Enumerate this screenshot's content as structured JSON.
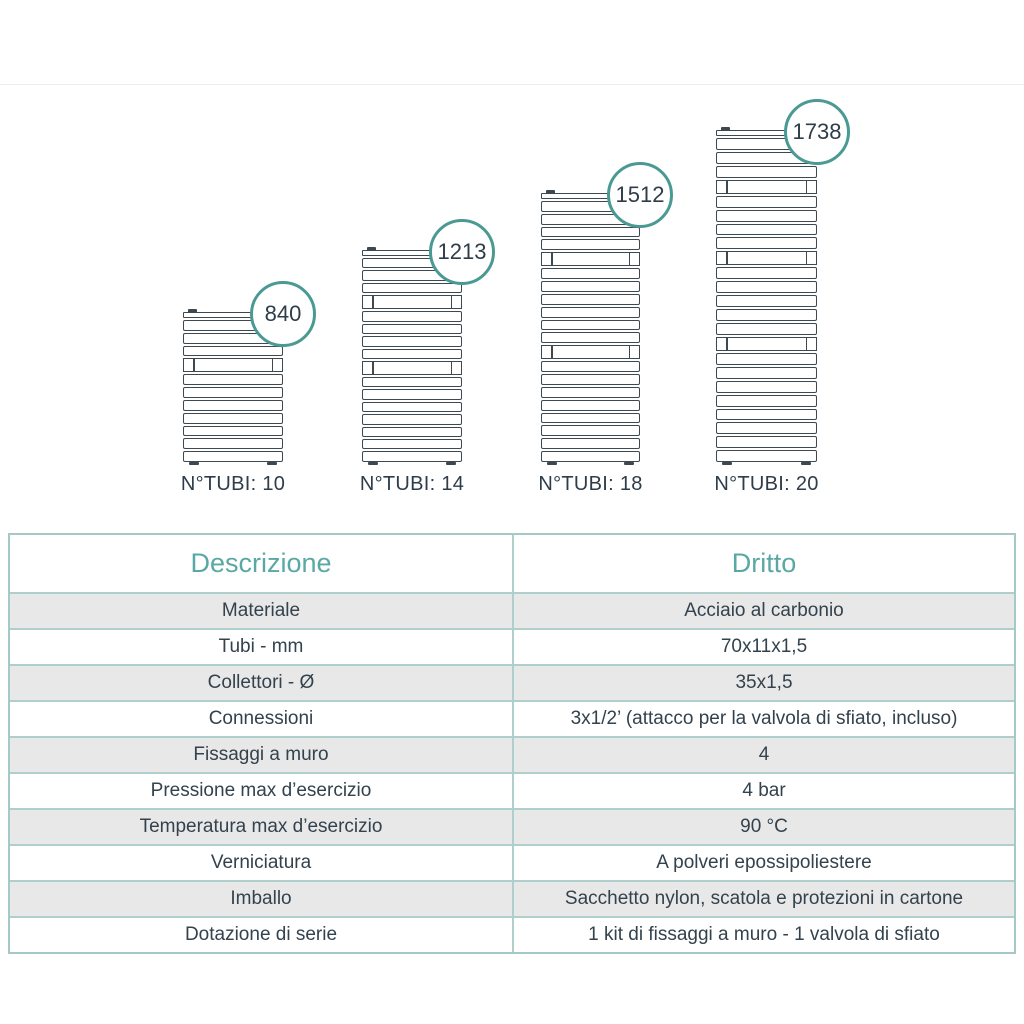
{
  "colors": {
    "circle_border_teal": "#4a9a93",
    "table_border_teal": "#a4c9c6",
    "header_text_teal": "#5aa8a3",
    "dark_text": "#2e3d49",
    "diagram_line": "#3d4851",
    "gray_row_background": "#e8e8e9"
  },
  "diagram": {
    "radiators": [
      {
        "height_mm": "840",
        "tube_label": "N°TUBI: 10",
        "tube_sections": [
          3,
          7
        ]
      },
      {
        "height_mm": "1213",
        "tube_label": "N°TUBI: 14",
        "tube_sections": [
          3,
          4,
          7
        ]
      },
      {
        "height_mm": "1512",
        "tube_label": "N°TUBI: 18",
        "tube_sections": [
          4,
          6,
          8
        ]
      },
      {
        "height_mm": "1738",
        "tube_label": "N°TUBI: 20",
        "tube_sections": [
          3,
          4,
          5,
          8
        ]
      }
    ]
  },
  "table": {
    "headers": [
      "Descrizione",
      "Dritto"
    ],
    "rows": [
      [
        "Materiale",
        "Acciaio al carbonio"
      ],
      [
        "Tubi - mm",
        "70x11x1,5"
      ],
      [
        "Collettori - Ø",
        "35x1,5"
      ],
      [
        "Connessioni",
        "3x1/2’ (attacco per la valvola di sfiato, incluso)"
      ],
      [
        "Fissaggi a muro",
        "4"
      ],
      [
        "Pressione max d’esercizio",
        "4 bar"
      ],
      [
        "Temperatura max d’esercizio",
        "90 °C"
      ],
      [
        "Verniciatura",
        "A polveri epossipoliestere"
      ],
      [
        "Imballo",
        "Sacchetto nylon, scatola e protezioni in cartone"
      ],
      [
        "Dotazione di serie",
        "1 kit di fissaggi a muro - 1 valvola di sfiato"
      ]
    ]
  }
}
